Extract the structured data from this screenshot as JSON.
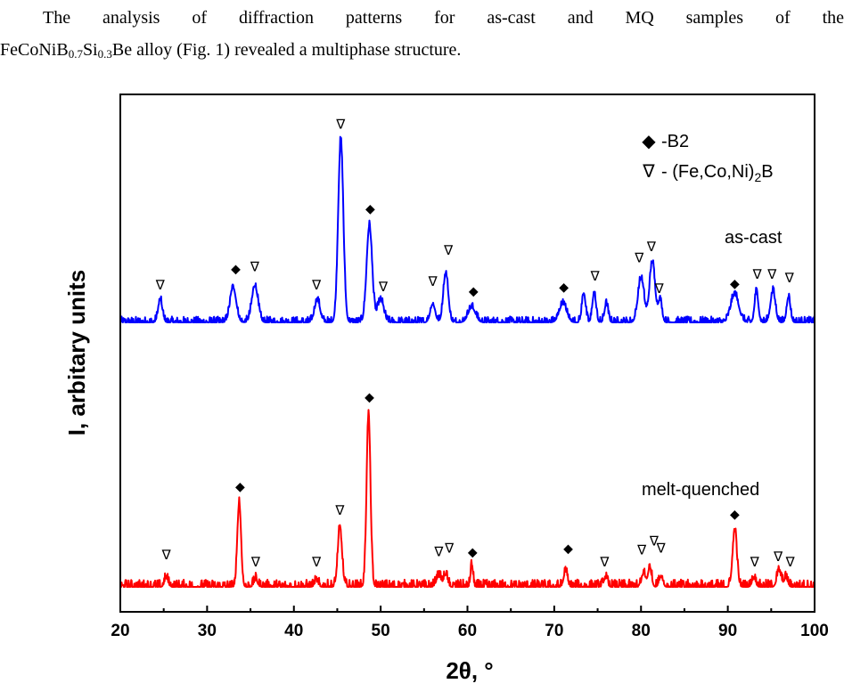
{
  "text": {
    "line1": "The analysis of diffraction patterns for as-cast and MQ samples of the",
    "alloy_parts": [
      {
        "t": "FeCoNiB",
        "sub": false
      },
      {
        "t": "0.7",
        "sub": true
      },
      {
        "t": "Si",
        "sub": false
      },
      {
        "t": "0.3",
        "sub": true
      },
      {
        "t": "Be alloy (Fig. 1) revealed a multiphase structure.",
        "sub": false
      }
    ]
  },
  "chart_data": {
    "type": "line",
    "xlabel": "2θ, °",
    "ylabel": "I, arbitary units",
    "xlim": [
      20,
      100
    ],
    "xticks": [
      20,
      30,
      40,
      50,
      60,
      70,
      80,
      90,
      100
    ],
    "grid": false,
    "legend": {
      "placement": "top-right",
      "entries": [
        {
          "symbol": "◆",
          "label_parts": [
            {
              "t": "-B2",
              "sub": false
            }
          ]
        },
        {
          "symbol": "∇",
          "label_parts": [
            {
              "t": "- (Fe,Co,Ni)",
              "sub": false
            },
            {
              "t": "2",
              "sub": true
            },
            {
              "t": "B",
              "sub": false
            }
          ]
        }
      ]
    },
    "series": [
      {
        "label": "as-cast",
        "color": "#0000ff",
        "baseline": 0,
        "noise": 1.2,
        "peaks": [
          {
            "x": 24.6,
            "h": 12,
            "w": 0.35
          },
          {
            "x": 33.0,
            "h": 19,
            "w": 0.5
          },
          {
            "x": 35.5,
            "h": 20,
            "w": 0.5
          },
          {
            "x": 42.7,
            "h": 12,
            "w": 0.45
          },
          {
            "x": 45.4,
            "h": 100,
            "w": 0.42
          },
          {
            "x": 48.7,
            "h": 53,
            "w": 0.45
          },
          {
            "x": 50.0,
            "h": 12,
            "w": 0.5
          },
          {
            "x": 56.0,
            "h": 10,
            "w": 0.4
          },
          {
            "x": 57.5,
            "h": 27,
            "w": 0.4
          },
          {
            "x": 60.5,
            "h": 8,
            "w": 0.6
          },
          {
            "x": 71.0,
            "h": 10,
            "w": 0.6
          },
          {
            "x": 73.4,
            "h": 16,
            "w": 0.3
          },
          {
            "x": 74.6,
            "h": 16,
            "w": 0.3
          },
          {
            "x": 76.0,
            "h": 10,
            "w": 0.3
          },
          {
            "x": 80.0,
            "h": 24,
            "w": 0.5
          },
          {
            "x": 81.3,
            "h": 33,
            "w": 0.45
          },
          {
            "x": 82.2,
            "h": 12,
            "w": 0.3
          },
          {
            "x": 90.8,
            "h": 15,
            "w": 0.65
          },
          {
            "x": 93.3,
            "h": 17,
            "w": 0.3
          },
          {
            "x": 95.2,
            "h": 17,
            "w": 0.4
          },
          {
            "x": 97.0,
            "h": 14,
            "w": 0.3
          }
        ]
      },
      {
        "label": "melt-quenched",
        "color": "#ff0000",
        "baseline": 0,
        "noise": 1.6,
        "peaks": [
          {
            "x": 25.3,
            "h": 5,
            "w": 0.3
          },
          {
            "x": 33.7,
            "h": 49,
            "w": 0.3
          },
          {
            "x": 35.6,
            "h": 4,
            "w": 0.3
          },
          {
            "x": 42.6,
            "h": 3,
            "w": 0.3
          },
          {
            "x": 45.3,
            "h": 34,
            "w": 0.35
          },
          {
            "x": 48.6,
            "h": 100,
            "w": 0.32
          },
          {
            "x": 56.7,
            "h": 6,
            "w": 0.4
          },
          {
            "x": 57.5,
            "h": 7,
            "w": 0.3
          },
          {
            "x": 60.5,
            "h": 13,
            "w": 0.2
          },
          {
            "x": 71.3,
            "h": 9,
            "w": 0.3
          },
          {
            "x": 75.9,
            "h": 5,
            "w": 0.3
          },
          {
            "x": 80.3,
            "h": 8,
            "w": 0.3
          },
          {
            "x": 81.0,
            "h": 11,
            "w": 0.3
          },
          {
            "x": 82.3,
            "h": 6,
            "w": 0.3
          },
          {
            "x": 90.8,
            "h": 33,
            "w": 0.35
          },
          {
            "x": 93.0,
            "h": 5,
            "w": 0.3
          },
          {
            "x": 95.9,
            "h": 9,
            "w": 0.35
          },
          {
            "x": 96.7,
            "h": 5,
            "w": 0.3
          }
        ]
      }
    ],
    "markers": [
      {
        "series": 0,
        "x": 24.6,
        "y": 18,
        "type": "tri"
      },
      {
        "series": 0,
        "x": 33.3,
        "y": 27,
        "type": "dia"
      },
      {
        "series": 0,
        "x": 35.5,
        "y": 28,
        "type": "tri"
      },
      {
        "series": 0,
        "x": 42.6,
        "y": 18,
        "type": "tri"
      },
      {
        "series": 0,
        "x": 45.4,
        "y": 106,
        "type": "tri"
      },
      {
        "series": 0,
        "x": 48.8,
        "y": 60,
        "type": "dia"
      },
      {
        "series": 0,
        "x": 50.3,
        "y": 17,
        "type": "tri"
      },
      {
        "series": 0,
        "x": 56.0,
        "y": 20,
        "type": "tri"
      },
      {
        "series": 0,
        "x": 57.8,
        "y": 37,
        "type": "tri"
      },
      {
        "series": 0,
        "x": 60.7,
        "y": 15,
        "type": "dia"
      },
      {
        "series": 0,
        "x": 71.1,
        "y": 17,
        "type": "dia"
      },
      {
        "series": 0,
        "x": 74.7,
        "y": 23,
        "type": "tri"
      },
      {
        "series": 0,
        "x": 79.8,
        "y": 33,
        "type": "tri"
      },
      {
        "series": 0,
        "x": 81.2,
        "y": 39,
        "type": "tri"
      },
      {
        "series": 0,
        "x": 82.1,
        "y": 16,
        "type": "tri"
      },
      {
        "series": 0,
        "x": 90.8,
        "y": 19,
        "type": "dia"
      },
      {
        "series": 0,
        "x": 93.4,
        "y": 24,
        "type": "tri"
      },
      {
        "series": 0,
        "x": 95.1,
        "y": 24,
        "type": "tri"
      },
      {
        "series": 0,
        "x": 97.1,
        "y": 22,
        "type": "tri"
      },
      {
        "series": 1,
        "x": 25.3,
        "y": 16,
        "type": "tri"
      },
      {
        "series": 1,
        "x": 33.8,
        "y": 56,
        "type": "dia"
      },
      {
        "series": 1,
        "x": 35.6,
        "y": 12,
        "type": "tri"
      },
      {
        "series": 1,
        "x": 42.6,
        "y": 12,
        "type": "tri"
      },
      {
        "series": 1,
        "x": 45.3,
        "y": 42,
        "type": "tri"
      },
      {
        "series": 1,
        "x": 48.7,
        "y": 108,
        "type": "dia"
      },
      {
        "series": 1,
        "x": 56.7,
        "y": 18,
        "type": "tri"
      },
      {
        "series": 1,
        "x": 57.9,
        "y": 20,
        "type": "tri"
      },
      {
        "series": 1,
        "x": 60.6,
        "y": 18,
        "type": "dia"
      },
      {
        "series": 1,
        "x": 71.6,
        "y": 20,
        "type": "dia"
      },
      {
        "series": 1,
        "x": 75.8,
        "y": 12,
        "type": "tri"
      },
      {
        "series": 1,
        "x": 80.1,
        "y": 19,
        "type": "tri"
      },
      {
        "series": 1,
        "x": 81.5,
        "y": 24,
        "type": "tri"
      },
      {
        "series": 1,
        "x": 82.3,
        "y": 20,
        "type": "tri"
      },
      {
        "series": 1,
        "x": 90.8,
        "y": 40,
        "type": "dia"
      },
      {
        "series": 1,
        "x": 93.1,
        "y": 12,
        "type": "tri"
      },
      {
        "series": 1,
        "x": 95.8,
        "y": 15,
        "type": "tri"
      },
      {
        "series": 1,
        "x": 97.2,
        "y": 12,
        "type": "tri"
      }
    ]
  }
}
